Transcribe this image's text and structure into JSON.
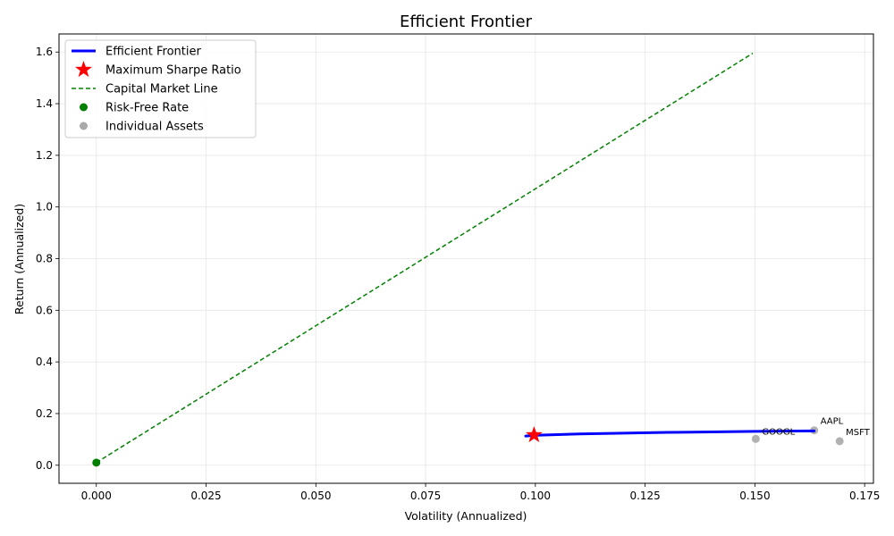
{
  "chart_data": {
    "type": "line",
    "title": "Efficient Frontier",
    "xlabel": "Volatility (Annualized)",
    "ylabel": "Return (Annualized)",
    "xlim": [
      -0.0085,
      0.177
    ],
    "ylim": [
      -0.07,
      1.67
    ],
    "xticks": [
      0.0,
      0.025,
      0.05,
      0.075,
      0.1,
      0.125,
      0.15,
      0.175
    ],
    "xtick_labels": [
      "0.000",
      "0.025",
      "0.050",
      "0.075",
      "0.100",
      "0.125",
      "0.150",
      "0.175"
    ],
    "yticks": [
      0.0,
      0.2,
      0.4,
      0.6,
      0.8,
      1.0,
      1.2,
      1.4,
      1.6
    ],
    "ytick_labels": [
      "0.0",
      "0.2",
      "0.4",
      "0.6",
      "0.8",
      "1.0",
      "1.2",
      "1.4",
      "1.6"
    ],
    "grid": true,
    "legend_placement": "top-left",
    "series": [
      {
        "name": "Efficient Frontier",
        "kind": "line",
        "color": "#0000ff",
        "x": [
          0.0978,
          0.1,
          0.11,
          0.12,
          0.13,
          0.14,
          0.15,
          0.1635
        ],
        "y": [
          0.113,
          0.116,
          0.121,
          0.124,
          0.127,
          0.129,
          0.131,
          0.133
        ]
      },
      {
        "name": "Maximum Sharpe Ratio",
        "kind": "star",
        "color": "#ff0000",
        "x": [
          0.0997
        ],
        "y": [
          0.117
        ]
      },
      {
        "name": "Capital Market Line",
        "kind": "dashed",
        "color": "#008000",
        "x": [
          0.0,
          0.1495
        ],
        "y": [
          0.01,
          1.595
        ]
      },
      {
        "name": "Risk-Free Rate",
        "kind": "marker",
        "color": "#008000",
        "x": [
          0.0
        ],
        "y": [
          0.01
        ]
      },
      {
        "name": "Individual Assets",
        "kind": "marker",
        "color": "#a9a9a9",
        "x": [
          0.1635,
          0.1502,
          0.1693
        ],
        "y": [
          0.135,
          0.102,
          0.093
        ],
        "labels": [
          "AAPL",
          "GOOGL",
          "MSFT"
        ]
      }
    ]
  }
}
